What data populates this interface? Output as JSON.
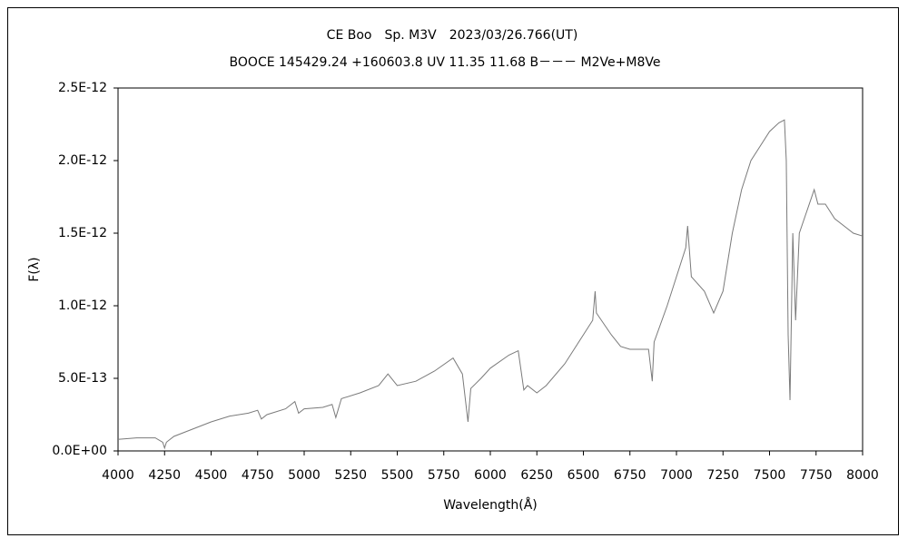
{
  "chart_data": {
    "type": "line",
    "title": "CE Boo　Sp. M3V　2023/03/26.766(UT)",
    "subtitle": "BOOCE 145429.24 +160603.8 UV 11.35 11.68 B－－－ M2Ve+M8Ve",
    "x_label": "Wavelength(Å)",
    "y_label": "F(λ)",
    "x": [
      4000,
      4100,
      4200,
      4240,
      4250,
      4260,
      4300,
      4400,
      4500,
      4600,
      4700,
      4750,
      4770,
      4800,
      4900,
      4950,
      4970,
      5000,
      5100,
      5150,
      5170,
      5200,
      5300,
      5400,
      5450,
      5500,
      5600,
      5700,
      5800,
      5850,
      5880,
      5895,
      5950,
      6000,
      6100,
      6150,
      6180,
      6200,
      6250,
      6300,
      6400,
      6450,
      6500,
      6550,
      6563,
      6570,
      6650,
      6700,
      6750,
      6850,
      6870,
      6880,
      6950,
      7000,
      7050,
      7060,
      7080,
      7150,
      7200,
      7250,
      7300,
      7350,
      7400,
      7450,
      7500,
      7550,
      7580,
      7590,
      7600,
      7610,
      7625,
      7640,
      7660,
      7700,
      7740,
      7760,
      7800,
      7850,
      7900,
      7950,
      8000
    ],
    "series": [
      {
        "color": "#7a7a7a",
        "values": [
          8e-14,
          9e-14,
          9e-14,
          6e-14,
          2e-14,
          6e-14,
          1e-13,
          1.5e-13,
          2e-13,
          2.4e-13,
          2.6e-13,
          2.8e-13,
          2.2e-13,
          2.5e-13,
          2.9e-13,
          3.4e-13,
          2.6e-13,
          2.9e-13,
          3e-13,
          3.2e-13,
          2.3e-13,
          3.6e-13,
          4e-13,
          4.5e-13,
          5.3e-13,
          4.5e-13,
          4.8e-13,
          5.5e-13,
          6.4e-13,
          5.3e-13,
          2e-13,
          4.3e-13,
          5e-13,
          5.7e-13,
          6.6e-13,
          6.9e-13,
          4.2e-13,
          4.5e-13,
          4e-13,
          4.5e-13,
          6e-13,
          7e-13,
          8e-13,
          9e-13,
          1.1e-12,
          9.5e-13,
          8e-13,
          7.2e-13,
          7e-13,
          7e-13,
          4.8e-13,
          7.5e-13,
          1e-12,
          1.2e-12,
          1.4e-12,
          1.55e-12,
          1.2e-12,
          1.1e-12,
          9.5e-13,
          1.1e-12,
          1.5e-12,
          1.8e-12,
          2e-12,
          2.1e-12,
          2.2e-12,
          2.26e-12,
          2.28e-12,
          2e-12,
          8e-13,
          3.5e-13,
          1.5e-12,
          9e-13,
          1.5e-12,
          1.65e-12,
          1.8e-12,
          1.7e-12,
          1.7e-12,
          1.6e-12,
          1.55e-12,
          1.5e-12,
          1.48e-12
        ]
      }
    ],
    "xlim": [
      4000,
      8000
    ],
    "xticks": [
      4000,
      4250,
      4500,
      4750,
      5000,
      5250,
      5500,
      5750,
      6000,
      6250,
      6500,
      6750,
      7000,
      7250,
      7500,
      7750,
      8000
    ],
    "ylim": [
      0,
      2.5e-12
    ],
    "yticks": [
      {
        "value": 0,
        "label": "0.0E+00"
      },
      {
        "value": 5e-13,
        "label": "5.0E-13"
      },
      {
        "value": 1e-12,
        "label": "1.0E-12"
      },
      {
        "value": 1.5e-12,
        "label": "1.5E-12"
      },
      {
        "value": 2e-12,
        "label": "2.0E-12"
      },
      {
        "value": 2.5e-12,
        "label": "2.5E-12"
      }
    ],
    "grid": false
  }
}
